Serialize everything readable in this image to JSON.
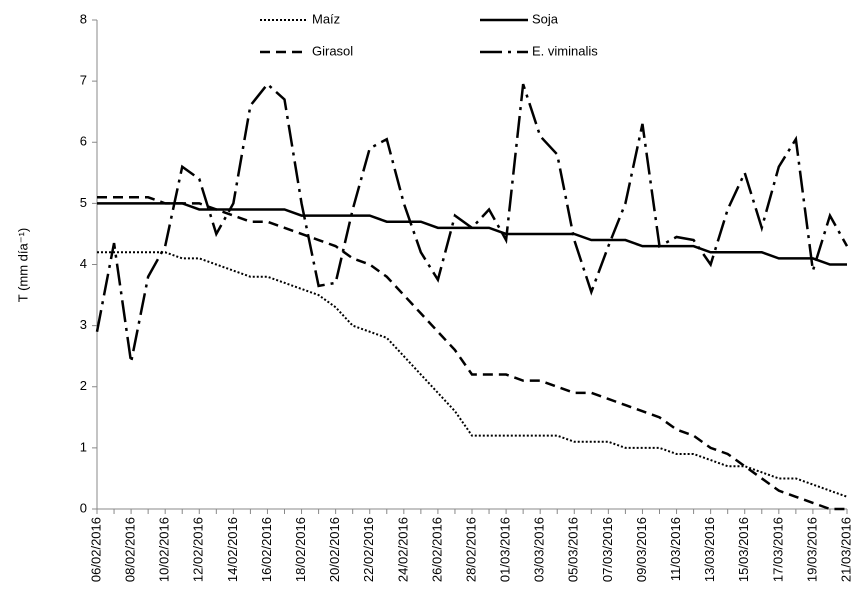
{
  "chart_data": {
    "type": "line",
    "y_label": "T (mm día⁻¹)",
    "categories": [
      "06/02/2016",
      null,
      "08/02/2016",
      null,
      "10/02/2016",
      null,
      "12/02/2016",
      null,
      "14/02/2016",
      null,
      "16/02/2016",
      null,
      "18/02/2016",
      null,
      "20/02/2016",
      null,
      "22/02/2016",
      null,
      "24/02/2016",
      null,
      "26/02/2016",
      null,
      "28/02/2016",
      null,
      "01/03/2016",
      null,
      "03/03/2016",
      null,
      "05/03/2016",
      null,
      "07/03/2016",
      null,
      "09/03/2016",
      null,
      "11/03/2016",
      null,
      "13/03/2016",
      null,
      "15/03/2016",
      null,
      "17/03/2016",
      null,
      "19/03/2016",
      null,
      "21/03/2016"
    ],
    "ylim": [
      0,
      8
    ],
    "yticks": [
      0,
      1,
      2,
      3,
      4,
      5,
      6,
      7,
      8
    ],
    "series": [
      {
        "name": "Maíz",
        "color": "#000000",
        "line_style": "dotted",
        "values": [
          4.2,
          4.2,
          4.2,
          4.2,
          4.2,
          4.1,
          4.1,
          4.0,
          3.9,
          3.8,
          3.8,
          3.7,
          3.6,
          3.5,
          3.3,
          3.0,
          2.9,
          2.8,
          2.5,
          2.2,
          1.9,
          1.6,
          1.2,
          1.2,
          1.2,
          1.2,
          1.2,
          1.2,
          1.1,
          1.1,
          1.1,
          1.0,
          1.0,
          1.0,
          0.9,
          0.9,
          0.8,
          0.7,
          0.7,
          0.6,
          0.5,
          0.5,
          0.4,
          0.3,
          0.2
        ]
      },
      {
        "name": "Soja",
        "color": "#000000",
        "line_style": "solid",
        "values": [
          5.0,
          5.0,
          5.0,
          5.0,
          5.0,
          5.0,
          4.9,
          4.9,
          4.9,
          4.9,
          4.9,
          4.9,
          4.8,
          4.8,
          4.8,
          4.8,
          4.8,
          4.7,
          4.7,
          4.7,
          4.6,
          4.6,
          4.6,
          4.6,
          4.5,
          4.5,
          4.5,
          4.5,
          4.5,
          4.4,
          4.4,
          4.4,
          4.3,
          4.3,
          4.3,
          4.3,
          4.2,
          4.2,
          4.2,
          4.2,
          4.1,
          4.1,
          4.1,
          4.0,
          4.0
        ]
      },
      {
        "name": "Girasol",
        "color": "#000000",
        "line_style": "dashed",
        "values": [
          5.1,
          5.1,
          5.1,
          5.1,
          5.0,
          5.0,
          5.0,
          4.9,
          4.8,
          4.7,
          4.7,
          4.6,
          4.5,
          4.4,
          4.3,
          4.1,
          4.0,
          3.8,
          3.5,
          3.2,
          2.9,
          2.6,
          2.2,
          2.2,
          2.2,
          2.1,
          2.1,
          2.0,
          1.9,
          1.9,
          1.8,
          1.7,
          1.6,
          1.5,
          1.3,
          1.2,
          1.0,
          0.9,
          0.7,
          0.5,
          0.3,
          0.2,
          0.1,
          0,
          0
        ]
      },
      {
        "name": "E. viminalis",
        "color": "#000000",
        "line_style": "dashdot",
        "values": [
          2.9,
          4.35,
          2.4,
          3.8,
          4.3,
          5.6,
          5.4,
          4.5,
          5.0,
          6.6,
          6.95,
          6.7,
          5.0,
          3.65,
          3.7,
          4.9,
          5.9,
          6.05,
          5.0,
          4.2,
          3.75,
          4.8,
          4.6,
          4.9,
          4.4,
          6.95,
          6.1,
          5.8,
          4.4,
          3.55,
          4.3,
          5.0,
          6.3,
          4.3,
          4.45,
          4.4,
          4.0,
          4.9,
          5.5,
          4.6,
          5.6,
          6.05,
          3.9,
          4.8,
          4.3
        ]
      }
    ]
  }
}
